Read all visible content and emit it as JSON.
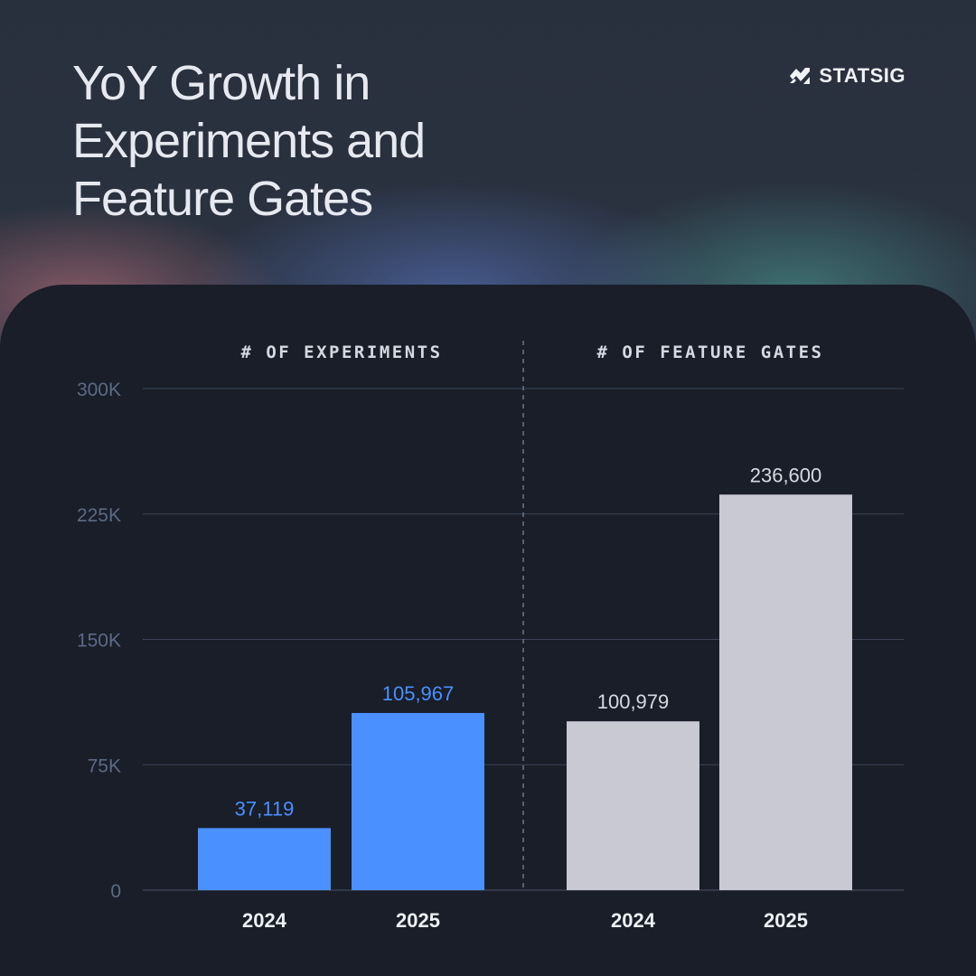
{
  "header": {
    "title": "YoY Growth in Experiments and Feature Gates",
    "brand": "STATSIG",
    "brand_icon": "statsig-logo-icon"
  },
  "colors": {
    "experiments": "#4a90ff",
    "feature_gates": "#c9c9d4",
    "grid": "#3c4556",
    "axis_tick": "#5c6b85",
    "divider": "#6d7587"
  },
  "chart_data": {
    "type": "bar",
    "ylim": [
      0,
      300000
    ],
    "yticks": [
      0,
      75000,
      150000,
      225000,
      300000
    ],
    "ytick_labels": [
      "0",
      "75K",
      "150K",
      "225K",
      "300K"
    ],
    "grid": true,
    "groups": [
      {
        "label": "# OF EXPERIMENTS",
        "categories": [
          "2024",
          "2025"
        ],
        "values": [
          37119,
          105967
        ],
        "value_labels": [
          "37,119",
          "105,967"
        ]
      },
      {
        "label": "# OF FEATURE GATES",
        "categories": [
          "2024",
          "2025"
        ],
        "values": [
          100979,
          236600
        ],
        "value_labels": [
          "100,979",
          "236,600"
        ]
      }
    ]
  }
}
